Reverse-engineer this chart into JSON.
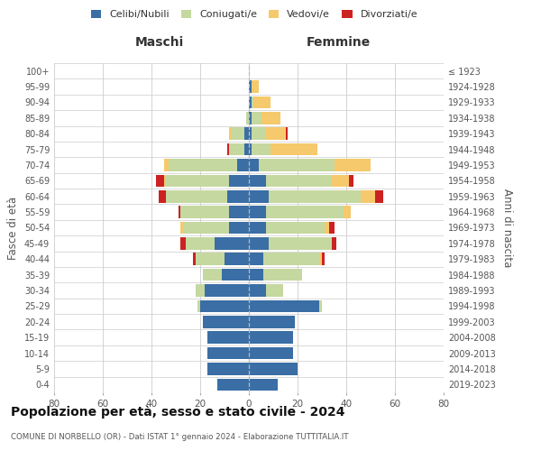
{
  "age_groups": [
    "0-4",
    "5-9",
    "10-14",
    "15-19",
    "20-24",
    "25-29",
    "30-34",
    "35-39",
    "40-44",
    "45-49",
    "50-54",
    "55-59",
    "60-64",
    "65-69",
    "70-74",
    "75-79",
    "80-84",
    "85-89",
    "90-94",
    "95-99",
    "100+"
  ],
  "birth_years": [
    "2019-2023",
    "2014-2018",
    "2009-2013",
    "2004-2008",
    "1999-2003",
    "1994-1998",
    "1989-1993",
    "1984-1988",
    "1979-1983",
    "1974-1978",
    "1969-1973",
    "1964-1968",
    "1959-1963",
    "1954-1958",
    "1949-1953",
    "1944-1948",
    "1939-1943",
    "1934-1938",
    "1929-1933",
    "1924-1928",
    "≤ 1923"
  ],
  "maschi": {
    "celibi": [
      13,
      17,
      17,
      17,
      19,
      20,
      18,
      11,
      10,
      14,
      8,
      8,
      9,
      8,
      5,
      2,
      2,
      0,
      0,
      0,
      0
    ],
    "coniugati": [
      0,
      0,
      0,
      0,
      0,
      1,
      4,
      8,
      12,
      12,
      19,
      20,
      25,
      26,
      28,
      6,
      5,
      1,
      0,
      0,
      0
    ],
    "vedovi": [
      0,
      0,
      0,
      0,
      0,
      0,
      0,
      0,
      0,
      0,
      1,
      0,
      0,
      1,
      2,
      0,
      1,
      0,
      0,
      0,
      0
    ],
    "divorziati": [
      0,
      0,
      0,
      0,
      0,
      0,
      0,
      0,
      1,
      2,
      0,
      1,
      3,
      3,
      0,
      1,
      0,
      0,
      0,
      0,
      0
    ]
  },
  "femmine": {
    "nubili": [
      12,
      20,
      18,
      18,
      19,
      29,
      7,
      6,
      6,
      8,
      7,
      7,
      8,
      7,
      4,
      1,
      1,
      1,
      1,
      1,
      0
    ],
    "coniugate": [
      0,
      0,
      0,
      0,
      0,
      1,
      7,
      16,
      23,
      26,
      24,
      32,
      38,
      27,
      31,
      8,
      6,
      4,
      1,
      0,
      0
    ],
    "vedove": [
      0,
      0,
      0,
      0,
      0,
      0,
      0,
      0,
      1,
      0,
      2,
      3,
      6,
      7,
      15,
      19,
      8,
      8,
      7,
      3,
      0
    ],
    "divorziate": [
      0,
      0,
      0,
      0,
      0,
      0,
      0,
      0,
      1,
      2,
      2,
      0,
      3,
      2,
      0,
      0,
      1,
      0,
      0,
      0,
      0
    ]
  },
  "colors": {
    "celibi_nubili": "#3a6ea5",
    "coniugati": "#c5d8a0",
    "vedovi": "#f5c96c",
    "divorziati": "#cc2222"
  },
  "title": "Popolazione per età, sesso e stato civile - 2024",
  "subtitle": "COMUNE DI NORBELLO (OR) - Dati ISTAT 1° gennaio 2024 - Elaborazione TUTTITALIA.IT",
  "xlabel_left": "Maschi",
  "xlabel_right": "Femmine",
  "ylabel_left": "Fasce di età",
  "ylabel_right": "Anni di nascita",
  "xlim": 80,
  "bg_color": "#ffffff",
  "grid_color": "#cccccc"
}
